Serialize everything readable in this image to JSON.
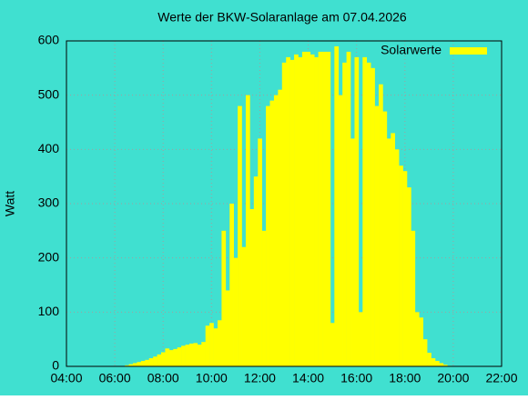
{
  "chart_data": {
    "type": "bar",
    "title": "Werte der BKW-Solaranlage am 07.04.2026",
    "y_label": "Watt",
    "x": [
      "06:30",
      "06:40",
      "06:50",
      "07:00",
      "07:10",
      "07:20",
      "07:30",
      "07:40",
      "07:50",
      "08:00",
      "08:10",
      "08:20",
      "08:30",
      "08:40",
      "08:50",
      "09:00",
      "09:10",
      "09:20",
      "09:30",
      "09:40",
      "09:50",
      "10:00",
      "10:10",
      "10:20",
      "10:30",
      "10:40",
      "10:50",
      "11:00",
      "11:10",
      "11:20",
      "11:30",
      "11:40",
      "11:50",
      "12:00",
      "12:10",
      "12:20",
      "12:30",
      "12:40",
      "12:50",
      "13:00",
      "13:10",
      "13:20",
      "13:30",
      "13:40",
      "13:50",
      "14:00",
      "14:10",
      "14:20",
      "14:30",
      "14:40",
      "14:50",
      "15:00",
      "15:10",
      "15:20",
      "15:30",
      "15:40",
      "15:50",
      "16:00",
      "16:10",
      "16:20",
      "16:30",
      "16:40",
      "16:50",
      "17:00",
      "17:10",
      "17:20",
      "17:30",
      "17:40",
      "17:50",
      "18:00",
      "18:10",
      "18:20",
      "18:30",
      "18:40",
      "18:50",
      "19:00",
      "19:10",
      "19:20",
      "19:30",
      "19:40",
      "19:50",
      "20:00"
    ],
    "series": [
      {
        "name": "Solarwerte",
        "color": "#ffff00",
        "values": [
          2,
          4,
          6,
          8,
          10,
          12,
          15,
          18,
          22,
          26,
          33,
          30,
          32,
          35,
          38,
          40,
          42,
          43,
          40,
          45,
          75,
          80,
          70,
          85,
          250,
          140,
          300,
          200,
          480,
          220,
          500,
          290,
          350,
          420,
          250,
          480,
          490,
          500,
          510,
          560,
          570,
          565,
          575,
          570,
          580,
          580,
          575,
          570,
          580,
          580,
          580,
          80,
          590,
          500,
          560,
          580,
          420,
          570,
          100,
          570,
          560,
          550,
          480,
          520,
          470,
          420,
          430,
          400,
          370,
          360,
          330,
          250,
          100,
          90,
          50,
          25,
          15,
          10,
          6,
          3,
          1,
          0
        ]
      }
    ],
    "xlim": [
      "04:00",
      "22:00"
    ],
    "xticks": [
      "04:00",
      "06:00",
      "08:00",
      "10:00",
      "12:00",
      "14:00",
      "16:00",
      "18:00",
      "20:00",
      "22:00"
    ],
    "ylim": [
      0,
      600
    ],
    "yticks": [
      0,
      100,
      200,
      300,
      400,
      500,
      600
    ],
    "grid": true,
    "legend": "top-right",
    "background": "#40e0d0"
  }
}
